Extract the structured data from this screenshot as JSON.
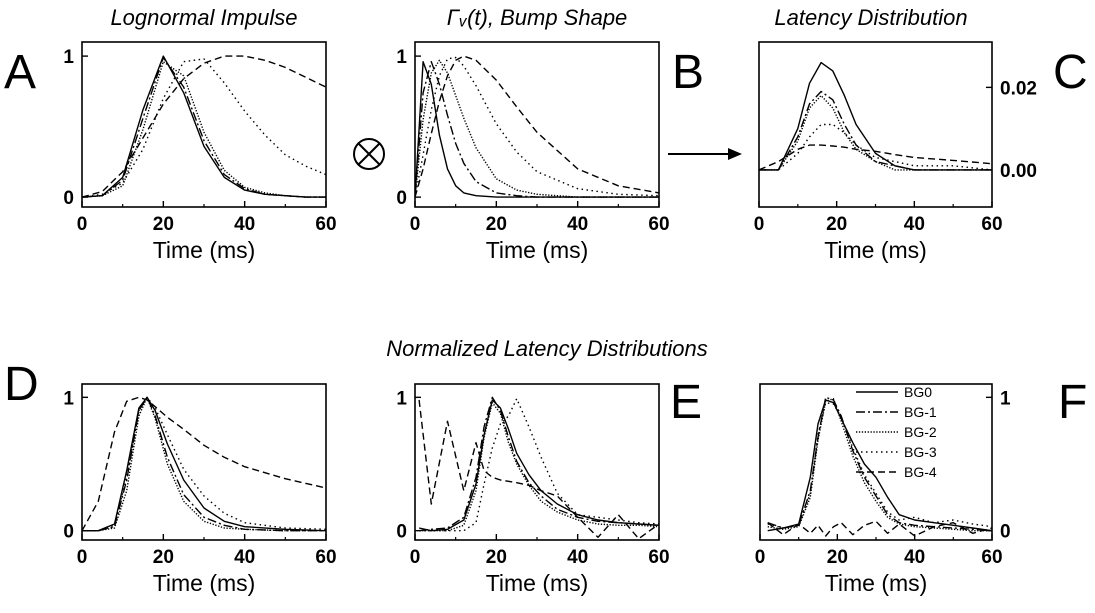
{
  "figure": {
    "section_title": "Normalized Latency Distributions",
    "convolution_symbol": "⊗",
    "arrow_icon": "right-arrow-icon",
    "legend": [
      "BG0",
      "BG-1",
      "BG-2",
      "BG-3",
      "BG-4"
    ],
    "series_styles": {
      "BG0": "solid",
      "BG-1": "dash-dot",
      "BG-2": "dotted-dense",
      "BG-3": "dotted-sparse",
      "BG-4": "dashed"
    }
  },
  "chart_data": [
    {
      "panel": "A",
      "type": "line",
      "title": "Lognormal Impulse",
      "xlabel": "Time (ms)",
      "ylabel": "",
      "xlim": [
        0,
        60
      ],
      "ylim": [
        -0.07,
        1.1
      ],
      "xticks": [
        0,
        20,
        40,
        60
      ],
      "yticks": [
        0,
        1
      ],
      "x": [
        0,
        5,
        10,
        15,
        20,
        25,
        30,
        35,
        40,
        45,
        50,
        55,
        60
      ],
      "series": [
        {
          "values": [
            0,
            0.01,
            0.14,
            0.62,
            1.0,
            0.74,
            0.36,
            0.14,
            0.05,
            0.02,
            0.01,
            0.0,
            0.0
          ]
        },
        {
          "values": [
            0,
            0.01,
            0.12,
            0.56,
            0.99,
            0.78,
            0.4,
            0.16,
            0.06,
            0.02,
            0.01,
            0.0,
            0.0
          ]
        },
        {
          "values": [
            0,
            0.01,
            0.08,
            0.48,
            0.96,
            0.86,
            0.46,
            0.19,
            0.07,
            0.03,
            0.01,
            0.0,
            0.0
          ]
        },
        {
          "values": [
            0,
            0.02,
            0.1,
            0.34,
            0.7,
            0.96,
            0.98,
            0.81,
            0.61,
            0.44,
            0.3,
            0.22,
            0.16
          ]
        },
        {
          "values": [
            0,
            0.04,
            0.18,
            0.42,
            0.66,
            0.84,
            0.95,
            1.0,
            1.0,
            0.97,
            0.92,
            0.85,
            0.78
          ]
        }
      ]
    },
    {
      "panel": "B",
      "type": "line",
      "title": "Γᵥ(t), Bump Shape",
      "xlabel": "Time (ms)",
      "ylabel": "",
      "xlim": [
        0,
        60
      ],
      "ylim": [
        -0.07,
        1.1
      ],
      "xticks": [
        0,
        20,
        40,
        60
      ],
      "yticks": [
        0,
        1
      ],
      "x": [
        0,
        2,
        4,
        6,
        8,
        10,
        12,
        15,
        20,
        25,
        30,
        40,
        50,
        60
      ],
      "series": [
        {
          "values": [
            0,
            0.96,
            0.8,
            0.44,
            0.2,
            0.08,
            0.03,
            0.01,
            0,
            0,
            0,
            0,
            0,
            0
          ]
        },
        {
          "values": [
            0,
            0.74,
            0.96,
            0.8,
            0.58,
            0.38,
            0.24,
            0.11,
            0.03,
            0.01,
            0,
            0,
            0,
            0
          ]
        },
        {
          "values": [
            0,
            0.55,
            0.88,
            0.97,
            0.88,
            0.72,
            0.56,
            0.35,
            0.13,
            0.05,
            0.02,
            0,
            0,
            0
          ]
        },
        {
          "values": [
            0,
            0.3,
            0.62,
            0.86,
            0.98,
            0.99,
            0.93,
            0.79,
            0.52,
            0.32,
            0.18,
            0.06,
            0.02,
            0.01
          ]
        },
        {
          "values": [
            0,
            0.2,
            0.45,
            0.68,
            0.86,
            0.97,
            1.0,
            0.97,
            0.83,
            0.64,
            0.46,
            0.2,
            0.08,
            0.03
          ]
        }
      ]
    },
    {
      "panel": "C",
      "type": "line",
      "title": "Latency Distribution",
      "xlabel": "Time (ms)",
      "ylabel": "",
      "xlim": [
        0,
        60
      ],
      "ylim": [
        -0.009,
        0.031
      ],
      "xticks": [
        0,
        20,
        40,
        60
      ],
      "yticks": [
        0.0,
        0.02
      ],
      "ytick_labels": [
        "0.00",
        "0.02"
      ],
      "y_axis_side": "right",
      "x": [
        0,
        5,
        10,
        13,
        16,
        19,
        22,
        25,
        30,
        35,
        40,
        50,
        60
      ],
      "series": [
        {
          "values": [
            0,
            0,
            0.01,
            0.021,
            0.026,
            0.024,
            0.018,
            0.011,
            0.004,
            0.001,
            0,
            0,
            0
          ]
        },
        {
          "values": [
            0,
            0,
            0.008,
            0.016,
            0.019,
            0.017,
            0.011,
            0.006,
            0.002,
            0.001,
            0,
            0,
            0
          ]
        },
        {
          "values": [
            0,
            0,
            0.007,
            0.015,
            0.018,
            0.015,
            0.009,
            0.005,
            0.002,
            0,
            0,
            0,
            0
          ]
        },
        {
          "values": [
            0,
            0,
            0.004,
            0.008,
            0.011,
            0.011,
            0.009,
            0.006,
            0.003,
            0.002,
            0.001,
            0.001,
            0
          ]
        },
        {
          "values": [
            0,
            0.002,
            0.005,
            0.006,
            0.006,
            0.0058,
            0.0055,
            0.005,
            0.0045,
            0.0037,
            0.003,
            0.0023,
            0.0015
          ]
        }
      ]
    },
    {
      "panel": "D",
      "type": "line",
      "title": "",
      "xlabel": "Time (ms)",
      "ylabel": "",
      "xlim": [
        0,
        60
      ],
      "ylim": [
        -0.07,
        1.1
      ],
      "xticks": [
        0,
        20,
        40,
        60
      ],
      "yticks": [
        0,
        1
      ],
      "x": [
        0,
        4,
        8,
        11,
        14,
        16,
        18,
        21,
        25,
        30,
        35,
        40,
        50,
        60
      ],
      "series": [
        {
          "values": [
            0,
            0,
            0.05,
            0.45,
            0.92,
            1.0,
            0.9,
            0.65,
            0.38,
            0.17,
            0.07,
            0.03,
            0.01,
            0
          ]
        },
        {
          "values": [
            0,
            0,
            0.03,
            0.38,
            0.9,
            1.0,
            0.86,
            0.55,
            0.27,
            0.1,
            0.04,
            0.01,
            0,
            0
          ]
        },
        {
          "values": [
            0,
            0,
            0.02,
            0.3,
            0.86,
            1.0,
            0.84,
            0.5,
            0.22,
            0.07,
            0.02,
            0.01,
            0,
            0
          ]
        },
        {
          "values": [
            0,
            0,
            0.04,
            0.4,
            0.9,
            1.0,
            0.92,
            0.72,
            0.46,
            0.26,
            0.13,
            0.06,
            0.02,
            0.01
          ]
        },
        {
          "values": [
            0,
            0.22,
            0.74,
            0.97,
            1.0,
            0.98,
            0.93,
            0.85,
            0.76,
            0.64,
            0.55,
            0.48,
            0.39,
            0.32
          ]
        }
      ]
    },
    {
      "panel": "E",
      "type": "line",
      "title": "",
      "xlabel": "Time (ms)",
      "ylabel": "",
      "xlim": [
        0,
        60
      ],
      "ylim": [
        -0.07,
        1.1
      ],
      "xticks": [
        0,
        20,
        40,
        60
      ],
      "yticks": [
        0,
        1
      ],
      "x": [
        1,
        4,
        8,
        12,
        15,
        17,
        19,
        21,
        23,
        25,
        28,
        31,
        35,
        40,
        45,
        50,
        55,
        60
      ],
      "series": [
        {
          "values": [
            0.02,
            0.0,
            0.01,
            0.08,
            0.35,
            0.72,
            0.98,
            0.92,
            0.76,
            0.58,
            0.42,
            0.3,
            0.2,
            0.12,
            0.08,
            0.06,
            0.05,
            0.04
          ]
        },
        {
          "values": [
            0.0,
            0.01,
            0.02,
            0.1,
            0.4,
            0.78,
            1.0,
            0.9,
            0.7,
            0.52,
            0.36,
            0.26,
            0.16,
            0.1,
            0.07,
            0.06,
            0.05,
            0.04
          ]
        },
        {
          "values": [
            0.0,
            0.0,
            0.0,
            0.04,
            0.3,
            0.7,
            0.96,
            0.88,
            0.66,
            0.5,
            0.34,
            0.22,
            0.14,
            0.08,
            0.05,
            0.04,
            0.04,
            0.03
          ]
        },
        {
          "values": [
            0.0,
            0.0,
            0.0,
            0.0,
            0.06,
            0.35,
            0.62,
            0.8,
            0.86,
            0.99,
            0.78,
            0.55,
            0.28,
            0.12,
            0.1,
            0.08,
            0.06,
            0.05
          ]
        },
        {
          "values": [
            0.98,
            0.2,
            0.82,
            0.3,
            0.66,
            0.45,
            0.4,
            0.38,
            0.37,
            0.36,
            0.34,
            0.3,
            0.26,
            0.1,
            -0.05,
            0.12,
            -0.06,
            0.05
          ]
        }
      ]
    },
    {
      "panel": "F",
      "type": "line",
      "title": "",
      "xlabel": "Time (ms)",
      "ylabel": "",
      "xlim": [
        0,
        60
      ],
      "ylim": [
        -0.07,
        1.1
      ],
      "xticks": [
        0,
        20,
        40,
        60
      ],
      "yticks": [
        0,
        1
      ],
      "y_axis_side": "right",
      "legend": [
        "BG0",
        "BG-1",
        "BG-2",
        "BG-3",
        "BG-4"
      ],
      "legend_position": "top-right",
      "x": [
        2,
        6,
        10,
        13,
        15,
        17,
        19,
        21,
        24,
        27,
        30,
        33,
        36,
        40,
        45,
        50,
        55,
        60
      ],
      "series": [
        {
          "name": "BG0",
          "values": [
            0.0,
            0.02,
            0.05,
            0.4,
            0.8,
            0.98,
            0.96,
            0.84,
            0.66,
            0.5,
            0.4,
            0.25,
            0.12,
            0.08,
            0.06,
            0.04,
            0.02,
            0.0
          ]
        },
        {
          "name": "BG-1",
          "values": [
            0.06,
            0.02,
            0.04,
            0.3,
            0.7,
            1.0,
            0.98,
            0.86,
            0.6,
            0.4,
            0.26,
            0.12,
            0.06,
            0.04,
            0.03,
            0.02,
            0.01,
            0.0
          ]
        },
        {
          "name": "BG-2",
          "values": [
            0.03,
            0.01,
            0.03,
            0.25,
            0.68,
            0.97,
            0.99,
            0.82,
            0.56,
            0.36,
            0.22,
            0.1,
            0.05,
            0.03,
            0.02,
            0.01,
            0.0,
            0.0
          ]
        },
        {
          "name": "BG-3",
          "values": [
            0.05,
            0.02,
            0.04,
            0.28,
            0.72,
            0.96,
            0.95,
            0.85,
            0.62,
            0.42,
            0.28,
            0.14,
            0.08,
            0.1,
            0.06,
            0.08,
            0.05,
            0.03
          ]
        },
        {
          "name": "BG-4",
          "values": [
            0.06,
            -0.03,
            0.05,
            -0.02,
            0.04,
            -0.04,
            0.03,
            0.06,
            -0.03,
            0.04,
            0.07,
            -0.02,
            0.05,
            -0.04,
            0.03,
            0.06,
            -0.02,
            0.02
          ]
        }
      ]
    }
  ]
}
